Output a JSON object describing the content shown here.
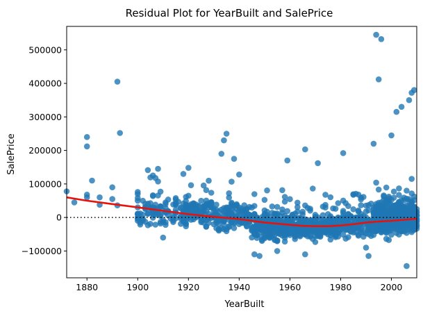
{
  "chart_data": {
    "type": "scatter",
    "title": "Residual Plot for YearBuilt and SalePrice",
    "xlabel": "YearBuilt",
    "ylabel": "SalePrice",
    "xlim": [
      1872,
      2010
    ],
    "ylim": [
      -180000,
      570000
    ],
    "xticks": [
      1880,
      1900,
      1920,
      1940,
      1960,
      1980,
      2000
    ],
    "yticks": [
      -100000,
      0,
      100000,
      200000,
      300000,
      400000,
      500000
    ],
    "grid": false,
    "colors": {
      "points": "#1f77b4",
      "lowess": "#e8120c",
      "zero_line": "#000000"
    },
    "zero_line_y": 0,
    "highlighted_points": [
      [
        1872,
        78000
      ],
      [
        1875,
        45000
      ],
      [
        1880,
        240000
      ],
      [
        1880,
        212000
      ],
      [
        1880,
        68000
      ],
      [
        1880,
        60000
      ],
      [
        1882,
        110000
      ],
      [
        1885,
        60000
      ],
      [
        1885,
        38000
      ],
      [
        1890,
        90000
      ],
      [
        1890,
        55000
      ],
      [
        1892,
        405000
      ],
      [
        1892,
        36000
      ],
      [
        1893,
        252000
      ],
      [
        1900,
        76000
      ],
      [
        1900,
        50000
      ],
      [
        1900,
        30000
      ],
      [
        1900,
        10000
      ],
      [
        1908,
        145000
      ],
      [
        1910,
        -60000
      ],
      [
        1918,
        130000
      ],
      [
        1920,
        148000
      ],
      [
        1934,
        230000
      ],
      [
        1935,
        250000
      ],
      [
        1933,
        190000
      ],
      [
        1938,
        175000
      ],
      [
        1940,
        128000
      ],
      [
        1946,
        -110000
      ],
      [
        1948,
        -115000
      ],
      [
        1955,
        -100000
      ],
      [
        1959,
        170000
      ],
      [
        1966,
        203000
      ],
      [
        1966,
        -110000
      ],
      [
        1971,
        162000
      ],
      [
        1981,
        192000
      ],
      [
        1990,
        -90000
      ],
      [
        1991,
        -115000
      ],
      [
        1993,
        220000
      ],
      [
        1994,
        545000
      ],
      [
        1995,
        412000
      ],
      [
        1996,
        532000
      ],
      [
        2000,
        245000
      ],
      [
        2002,
        315000
      ],
      [
        2004,
        330000
      ],
      [
        2006,
        -145000
      ],
      [
        2007,
        350000
      ],
      [
        2008,
        372000
      ],
      [
        2009,
        380000
      ]
    ],
    "bands": [
      {
        "x0": 1900,
        "x1": 1930,
        "y_center": 15000,
        "spread": 60000,
        "count": 210
      },
      {
        "x0": 1930,
        "x1": 1945,
        "y_center": 0,
        "spread": 60000,
        "count": 120
      },
      {
        "x0": 1945,
        "x1": 1980,
        "y_center": -28000,
        "spread": 60000,
        "count": 520
      },
      {
        "x0": 1980,
        "x1": 1993,
        "y_center": -20000,
        "spread": 60000,
        "count": 150
      },
      {
        "x0": 1993,
        "x1": 2010,
        "y_center": 0,
        "spread": 75000,
        "count": 560
      }
    ],
    "lowess": {
      "x": [
        1872,
        1880,
        1890,
        1900,
        1910,
        1920,
        1930,
        1940,
        1950,
        1960,
        1965,
        1970,
        1975,
        1980,
        1985,
        1990,
        1995,
        2000,
        2005,
        2010
      ],
      "y": [
        60000,
        50000,
        40000,
        30000,
        20000,
        10000,
        2000,
        -5000,
        -15000,
        -22000,
        -25000,
        -26000,
        -26000,
        -24000,
        -20000,
        -15000,
        -12000,
        -10000,
        -7000,
        -4000
      ]
    }
  }
}
